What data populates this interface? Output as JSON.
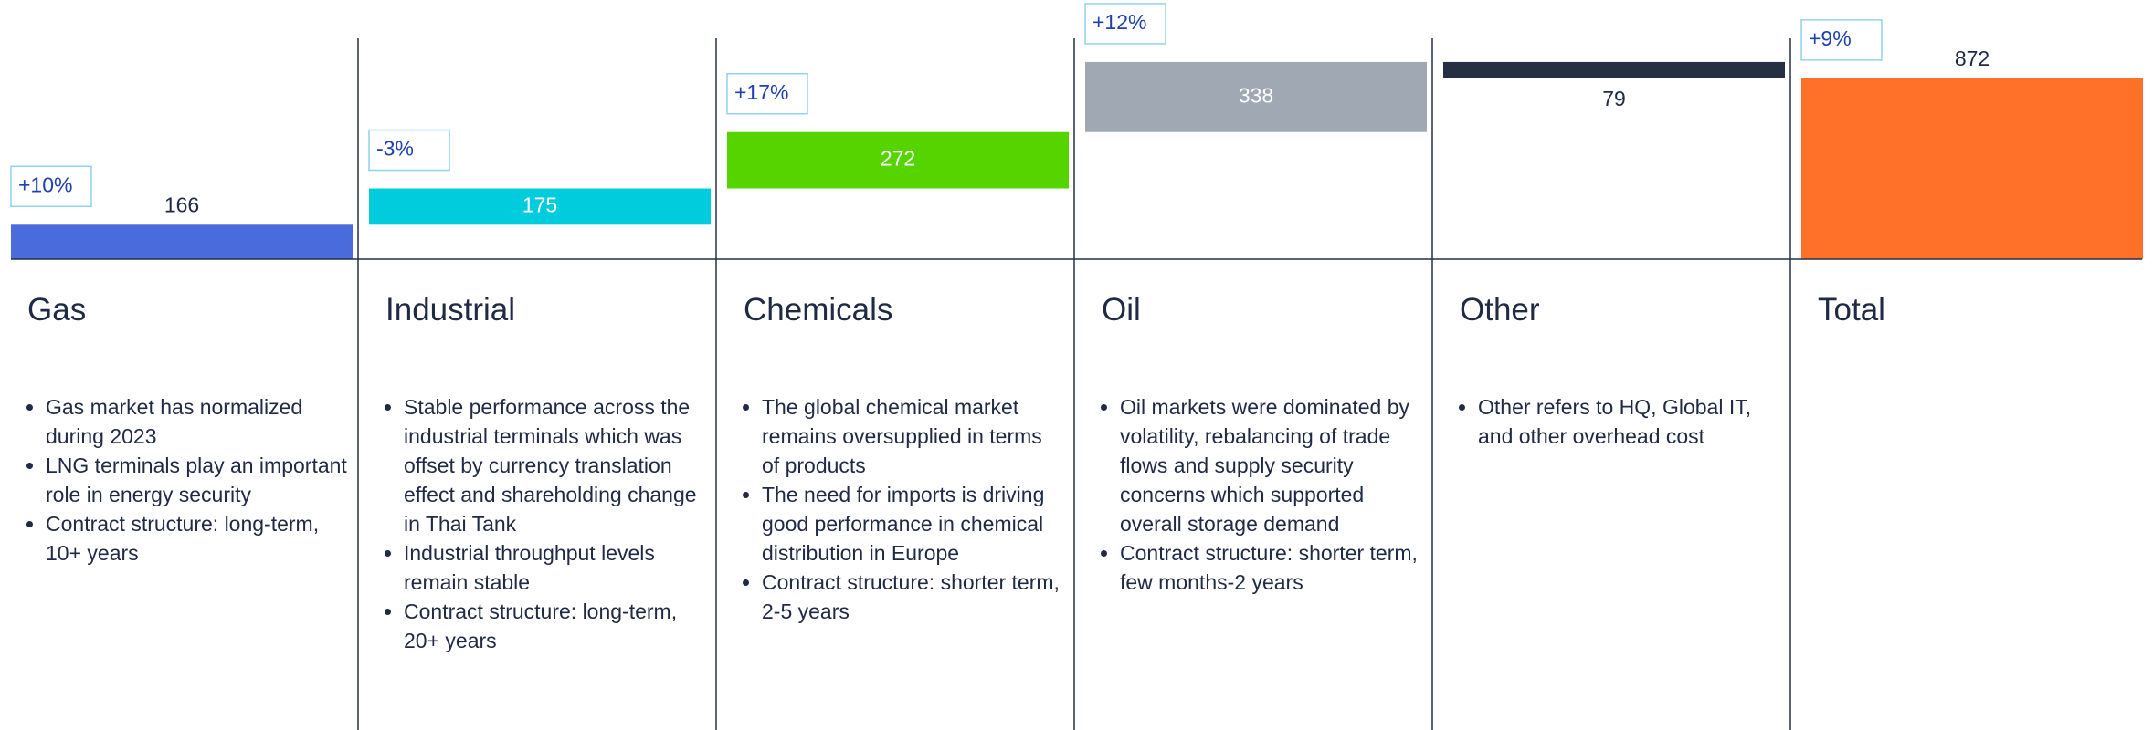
{
  "chart_data": {
    "type": "waterfall",
    "categories": [
      "Gas",
      "Industrial",
      "Chemicals",
      "Oil",
      "Other",
      "Total"
    ],
    "values": [
      166,
      175,
      272,
      338,
      -79,
      872
    ],
    "value_labels": [
      "166",
      "175",
      "272",
      "338",
      "79",
      "872"
    ],
    "totals": [
      false,
      false,
      false,
      false,
      false,
      true
    ],
    "label_positions": [
      "above",
      "inside",
      "inside",
      "inside",
      "below",
      "above"
    ],
    "colors": [
      "#4a6bdc",
      "#00ccdd",
      "#55d400",
      "#a0a8b4",
      "#253045",
      "#ff7029"
    ],
    "growth": [
      10,
      -3,
      17,
      12,
      null,
      9
    ],
    "growth_labels": [
      "+10%",
      "-3%",
      "+17%",
      "+12%",
      null,
      "+9%"
    ],
    "ylim": [
      0,
      1250
    ]
  },
  "notes": [
    [
      "Gas market has normalized during 2023",
      "LNG terminals play an important role in energy security",
      "Contract structure: long-term, 10+ years"
    ],
    [
      "Stable performance across the industrial terminals which was offset by currency translation effect and shareholding change in Thai Tank",
      "Industrial throughput levels remain stable",
      "Contract structure: long-term, 20+ years"
    ],
    [
      "The global chemical market remains oversupplied in terms of products",
      "The need for imports is driving good performance in chemical distribution in Europe",
      "Contract structure: shorter term, 2-5 years"
    ],
    [
      "Oil markets were dominated by volatility, rebalancing of trade flows and supply security concerns which supported overall storage demand",
      "Contract structure: shorter term, few months-2 years"
    ],
    [
      "Other refers to HQ, Global IT, and other overhead cost"
    ],
    []
  ]
}
